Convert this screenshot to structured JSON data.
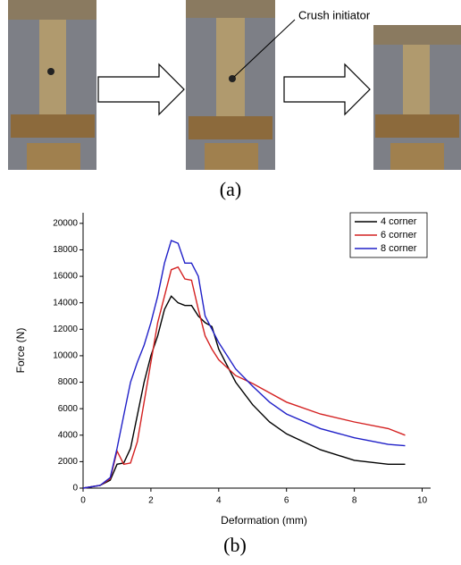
{
  "figure": {
    "annotation": "Crush initiator",
    "caption_a": "(a)",
    "caption_b": "(b)"
  },
  "chart_data": {
    "type": "line",
    "xlabel": "Deformation (mm)",
    "ylabel": "Force (N)",
    "x": [
      0,
      0.5,
      0.8,
      1,
      1.2,
      1.4,
      1.6,
      1.8,
      2,
      2.2,
      2.4,
      2.6,
      2.8,
      3,
      3.2,
      3.4,
      3.6,
      3.8,
      4,
      4.5,
      5,
      5.5,
      6,
      7,
      8,
      9,
      9.5
    ],
    "series": [
      {
        "name": "4 corner",
        "color": "#000000",
        "values": [
          0,
          200,
          600,
          1800,
          1900,
          3000,
          5500,
          8000,
          10000,
          11500,
          13500,
          14500,
          14000,
          13800,
          13800,
          13000,
          12500,
          12200,
          10500,
          8000,
          6300,
          5000,
          4100,
          2900,
          2100,
          1800,
          1800
        ]
      },
      {
        "name": "6 corner",
        "color": "#d42020",
        "values": [
          0,
          200,
          700,
          2800,
          1800,
          1900,
          3500,
          6500,
          9500,
          12500,
          14500,
          16500,
          16700,
          15800,
          15700,
          13500,
          11500,
          10500,
          9700,
          8500,
          7900,
          7200,
          6500,
          5600,
          5000,
          4500,
          4000
        ]
      },
      {
        "name": "8 corner",
        "color": "#2020c8",
        "values": [
          0,
          200,
          800,
          3000,
          5500,
          8000,
          9500,
          10800,
          12500,
          14500,
          17000,
          18700,
          18500,
          17000,
          17000,
          16000,
          13000,
          12000,
          11000,
          9000,
          7700,
          6500,
          5600,
          4500,
          3800,
          3300,
          3200
        ]
      }
    ],
    "xlim": [
      0,
      10.25
    ],
    "xticks": [
      0,
      2,
      4,
      6,
      8,
      10
    ],
    "ylim": [
      0,
      20800
    ],
    "yticks": [
      0,
      2000,
      4000,
      6000,
      8000,
      10000,
      12000,
      14000,
      16000,
      18000,
      20000
    ],
    "legend": "top-right",
    "grid": false
  }
}
